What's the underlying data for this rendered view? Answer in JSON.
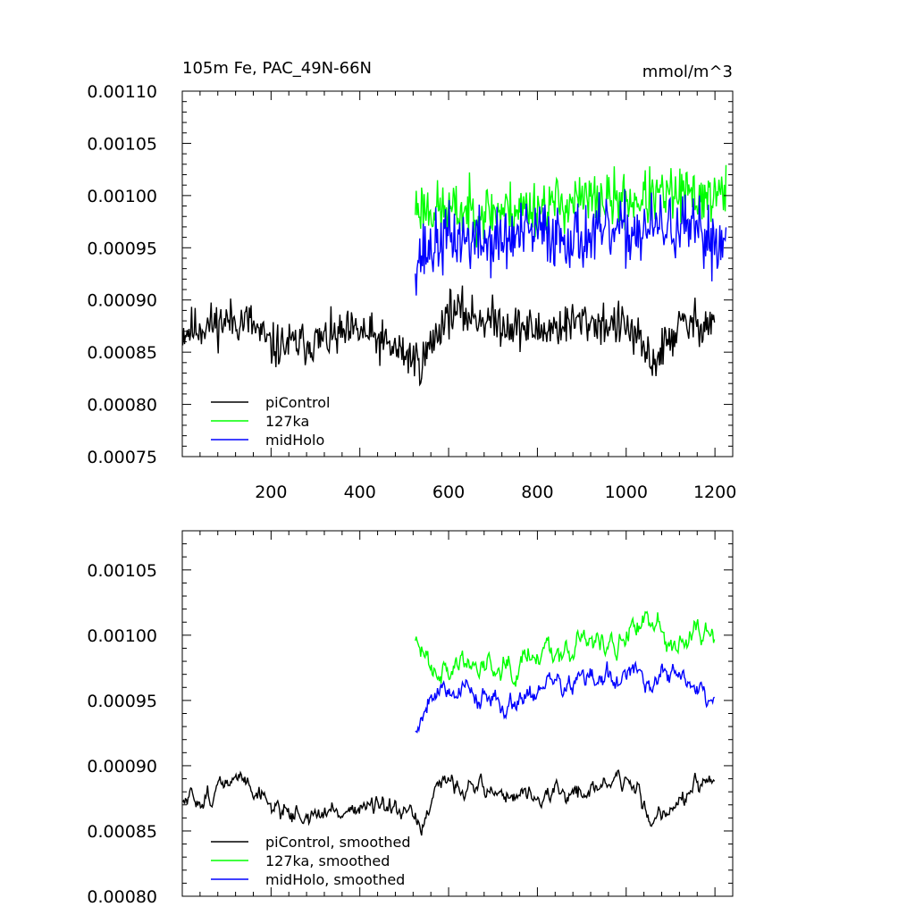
{
  "chart_data": [
    {
      "type": "line",
      "title": "105m Fe, PAC_49N-66N",
      "units": "mmol/m^3",
      "xlim": [
        0,
        1240
      ],
      "ylim": [
        0.00075,
        0.0011
      ],
      "x_ticks": [
        200,
        400,
        600,
        800,
        1000,
        1200
      ],
      "x_tick_labels": [
        "200",
        "400",
        "600",
        "800",
        "1000",
        "1200"
      ],
      "y_ticks": [
        0.00075,
        0.0008,
        0.00085,
        0.0009,
        0.00095,
        0.001,
        0.00105,
        0.0011
      ],
      "y_tick_labels": [
        "0.00075",
        "0.00080",
        "0.00085",
        "0.00090",
        "0.00095",
        "0.00100",
        "0.00105",
        "0.00110"
      ],
      "legend": [
        "piControl",
        "127ka",
        "midHolo"
      ],
      "series": [
        {
          "name": "piControl",
          "color": "#000000",
          "x_start": 1,
          "x_end": 1200,
          "mean": 0.000875,
          "amplitude": 2e-05,
          "seed": 11,
          "anchors": [
            [
              1,
              0.00087
            ],
            [
              100,
              0.00088
            ],
            [
              150,
              0.00088
            ],
            [
              200,
              0.000855
            ],
            [
              300,
              0.00086
            ],
            [
              400,
              0.00087
            ],
            [
              540,
              0.00084
            ],
            [
              600,
              0.00089
            ],
            [
              700,
              0.00088
            ],
            [
              800,
              0.00087
            ],
            [
              900,
              0.00088
            ],
            [
              1000,
              0.000875
            ],
            [
              1060,
              0.00084
            ],
            [
              1120,
              0.000875
            ],
            [
              1200,
              0.00088
            ]
          ]
        },
        {
          "name": "127ka",
          "color": "#00ff00",
          "x_start": 525,
          "x_end": 1225,
          "mean": 0.00099,
          "amplitude": 2.5e-05,
          "seed": 23,
          "anchors": [
            [
              525,
              0.00099
            ],
            [
              600,
              0.000985
            ],
            [
              700,
              0.000985
            ],
            [
              800,
              0.00099
            ],
            [
              900,
              0.000995
            ],
            [
              1000,
              0.000995
            ],
            [
              1100,
              0.001
            ],
            [
              1225,
              0.001
            ]
          ]
        },
        {
          "name": "midHolo",
          "color": "#0000ff",
          "x_start": 525,
          "x_end": 1225,
          "mean": 0.00096,
          "amplitude": 3e-05,
          "seed": 37,
          "anchors": [
            [
              525,
              0.00094
            ],
            [
              600,
              0.00096
            ],
            [
              700,
              0.000955
            ],
            [
              800,
              0.000965
            ],
            [
              900,
              0.00096
            ],
            [
              1000,
              0.000965
            ],
            [
              1100,
              0.00097
            ],
            [
              1225,
              0.000955
            ]
          ]
        }
      ]
    },
    {
      "type": "line",
      "title": "",
      "xlim": [
        0,
        1240
      ],
      "ylim": [
        0.0008,
        0.00108
      ],
      "y_ticks": [
        0.0008,
        0.00085,
        0.0009,
        0.00095,
        0.001,
        0.00105
      ],
      "y_tick_labels": [
        "0.00080",
        "0.00085",
        "0.00090",
        "0.00095",
        "0.00100",
        "0.00105"
      ],
      "x_ticks": [
        200,
        400,
        600,
        800,
        1000,
        1200
      ],
      "legend": [
        "piControl, smoothed",
        "127ka, smoothed",
        "midHolo, smoothed"
      ],
      "series": [
        {
          "name": "piControl, smoothed",
          "color": "#000000",
          "x_start": 1,
          "x_end": 1200,
          "mean": 0.000875,
          "amplitude": 1.5e-05,
          "seed": 51,
          "anchors": [
            [
              1,
              0.00087
            ],
            [
              100,
              0.000885
            ],
            [
              150,
              0.00089
            ],
            [
              200,
              0.00087
            ],
            [
              300,
              0.00086
            ],
            [
              400,
              0.00087
            ],
            [
              540,
              0.000855
            ],
            [
              600,
              0.00089
            ],
            [
              700,
              0.00088
            ],
            [
              800,
              0.000875
            ],
            [
              900,
              0.00088
            ],
            [
              1000,
              0.00089
            ],
            [
              1060,
              0.00086
            ],
            [
              1120,
              0.000875
            ],
            [
              1200,
              0.000885
            ]
          ]
        },
        {
          "name": "127ka, smoothed",
          "color": "#00ff00",
          "x_start": 525,
          "x_end": 1200,
          "mean": 0.00099,
          "amplitude": 2e-05,
          "seed": 63,
          "anchors": [
            [
              525,
              0.00099
            ],
            [
              600,
              0.000975
            ],
            [
              700,
              0.00098
            ],
            [
              800,
              0.00099
            ],
            [
              900,
              0.000995
            ],
            [
              1000,
              0.000995
            ],
            [
              1050,
              0.00101
            ],
            [
              1100,
              0.001
            ],
            [
              1200,
              0.001
            ]
          ]
        },
        {
          "name": "midHolo, smoothed",
          "color": "#0000ff",
          "x_start": 525,
          "x_end": 1200,
          "mean": 0.00096,
          "amplitude": 1.8e-05,
          "seed": 79,
          "anchors": [
            [
              525,
              0.000925
            ],
            [
              560,
              0.00096
            ],
            [
              650,
              0.00096
            ],
            [
              700,
              0.000945
            ],
            [
              800,
              0.00096
            ],
            [
              900,
              0.000965
            ],
            [
              1000,
              0.000965
            ],
            [
              1100,
              0.00097
            ],
            [
              1200,
              0.00095
            ]
          ]
        }
      ]
    }
  ]
}
